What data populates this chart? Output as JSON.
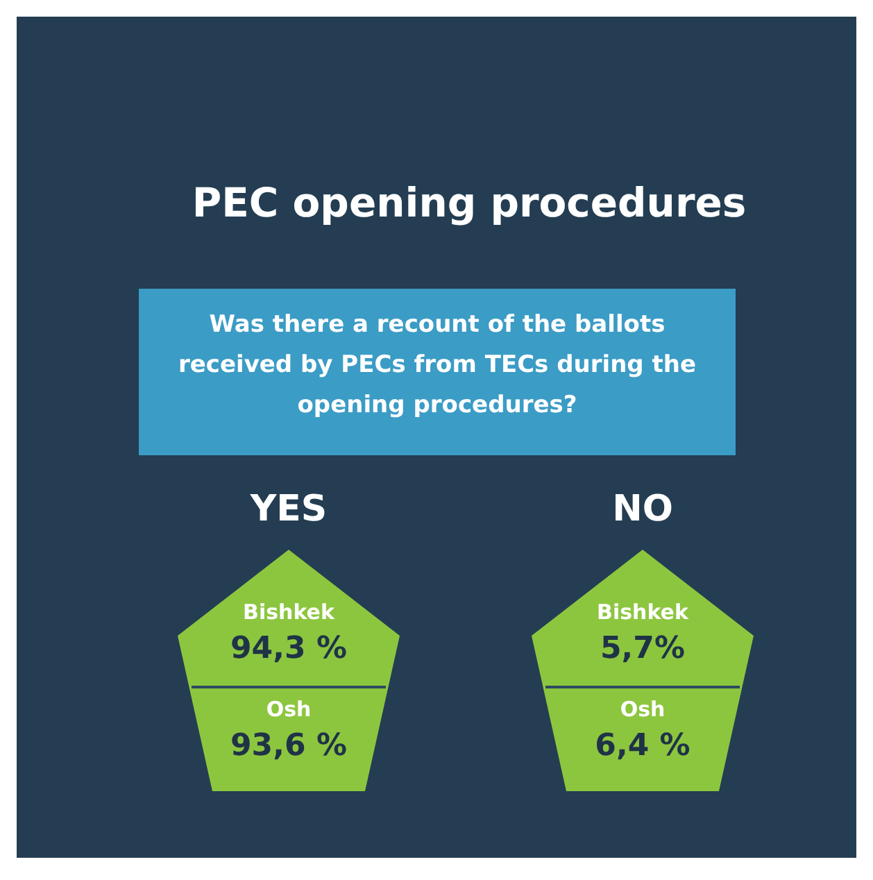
{
  "chart_data": {
    "type": "other",
    "title": "PEC opening procedures",
    "subtitle": "Was there a recount of the ballots received by PECs from TECs during the opening procedures?",
    "categories": [
      "Bishkek",
      "Osh"
    ],
    "series": [
      {
        "name": "YES",
        "color": "#8cc63f",
        "values": [
          94.3,
          93.6
        ],
        "value_labels": [
          "94,3 %",
          "93,6 %"
        ]
      },
      {
        "name": "NO",
        "color": "#8cc63f",
        "values": [
          5.7,
          6.4
        ],
        "value_labels": [
          "5,7%",
          "6,4 %"
        ]
      }
    ]
  }
}
